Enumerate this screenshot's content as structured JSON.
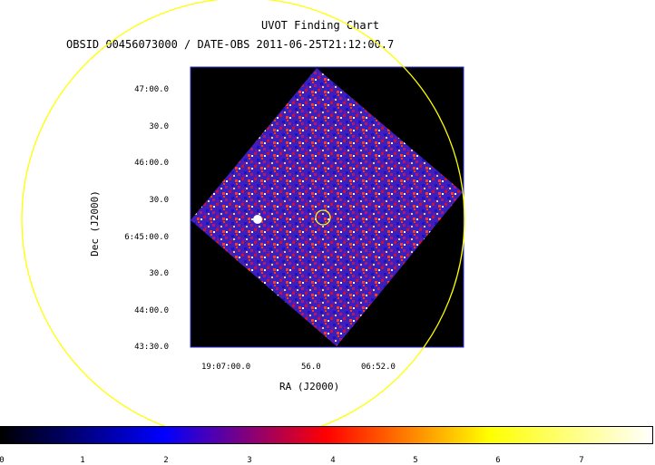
{
  "title": "UVOT Finding Chart",
  "subtitle": "OBSID 00456073000 / DATE-OBS 2011-06-25T21:12:00.7",
  "dec_axis": {
    "label": "Dec (J2000)",
    "ticks": [
      "47:00.0",
      "30.0",
      "46:00.0",
      "30.0",
      "6:45:00.0",
      "30.0",
      "44:00.0",
      "43:30.0"
    ]
  },
  "ra_axis": {
    "label": "RA (J2000)",
    "ticks": [
      "19:07:00.0",
      "56.0",
      "06:52.0"
    ]
  },
  "colorbar": {
    "ticks": [
      "0",
      "1",
      "2",
      "3",
      "4",
      "5",
      "6",
      "7"
    ],
    "colors": [
      "#000000",
      "#0000ff",
      "#ff0000",
      "#ffff00",
      "#ffffff"
    ]
  },
  "overlay_colors": {
    "circle": "#ffff00",
    "frame": "#2b2bd6"
  }
}
